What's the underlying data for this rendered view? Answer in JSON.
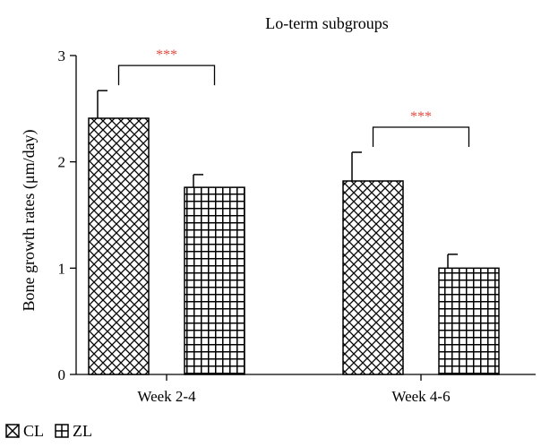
{
  "chart_data": {
    "type": "bar",
    "title": "Lo-term subgroups",
    "ylabel": "Bone growth rates (μm/day)",
    "xlabel": "",
    "categories": [
      "Week 2-4",
      "Week 4-6"
    ],
    "ylim": [
      0,
      3
    ],
    "yticks": [
      "0",
      "1",
      "2",
      "3"
    ],
    "grid": false,
    "legend_position": "bottom-left",
    "series": [
      {
        "name": "CL",
        "pattern": "crosshatch",
        "values": [
          2.41,
          1.82
        ],
        "errors": [
          0.26,
          0.27
        ]
      },
      {
        "name": "ZL",
        "pattern": "grid",
        "values": [
          1.76,
          1.0
        ],
        "errors": [
          0.12,
          0.13
        ]
      }
    ],
    "annotations": [
      {
        "text": "***",
        "category": "Week 2-4",
        "color": "#e8473c"
      },
      {
        "text": "***",
        "category": "Week 4-6",
        "color": "#e8473c"
      }
    ]
  }
}
